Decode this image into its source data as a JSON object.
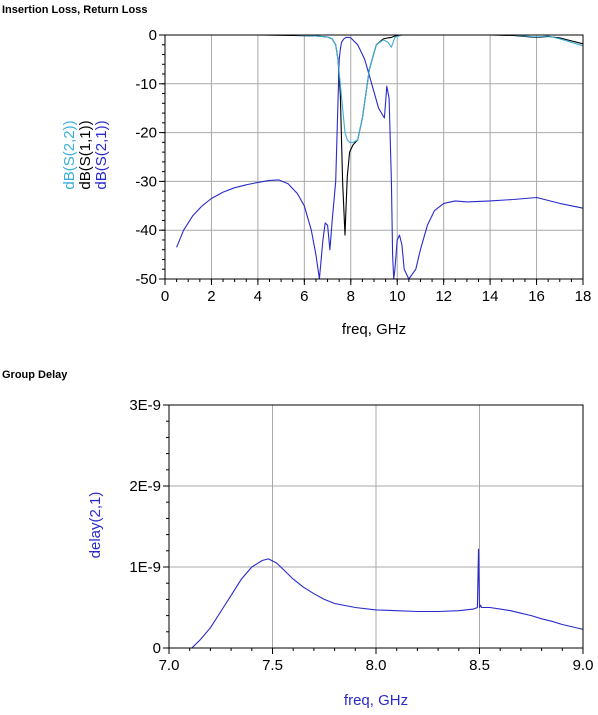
{
  "chart_data": [
    {
      "type": "line",
      "title": "Insertion Loss, Return Loss",
      "xlabel": "freq, GHz",
      "xlim": [
        0,
        18
      ],
      "ylim": [
        -50,
        0
      ],
      "x_ticks": [
        "0",
        "2",
        "4",
        "6",
        "8",
        "10",
        "12",
        "14",
        "16",
        "18"
      ],
      "y_ticks": [
        "0",
        "-10",
        "-20",
        "-30",
        "-40",
        "-50"
      ],
      "grid": true,
      "y_labels": [
        {
          "text": "dB(S(2,2))",
          "color": "#3aaed8"
        },
        {
          "text": "dB(S(1,1))",
          "color": "#000000"
        },
        {
          "text": "dB(S(2,1))",
          "color": "#2a2acc"
        }
      ],
      "series": [
        {
          "name": "dB(S(2,1))",
          "color": "#2a2acc",
          "x": [
            0.5,
            0.8,
            1.2,
            1.6,
            2.0,
            2.5,
            3.0,
            3.5,
            4.0,
            4.5,
            4.9,
            5.3,
            5.7,
            6.0,
            6.3,
            6.5,
            6.65,
            6.8,
            6.9,
            7.0,
            7.1,
            7.2,
            7.35,
            7.5,
            7.55,
            7.6,
            7.7,
            7.8,
            7.9,
            8.0,
            8.3,
            8.6,
            8.9,
            9.2,
            9.45,
            9.55,
            9.65,
            9.75,
            9.8,
            9.85,
            9.9,
            10.0,
            10.1,
            10.2,
            10.3,
            10.5,
            10.8,
            11.0,
            11.3,
            11.6,
            12.0,
            12.5,
            13.0,
            14.0,
            15.0,
            16.0,
            17.0,
            18.0
          ],
          "y": [
            -43.5,
            -40,
            -37,
            -35,
            -33.5,
            -32.2,
            -31.3,
            -30.7,
            -30.2,
            -29.8,
            -29.7,
            -30.5,
            -32.5,
            -35,
            -40,
            -45,
            -50,
            -42,
            -38.5,
            -39,
            -44,
            -38,
            -30,
            -5,
            -3,
            -1.5,
            -0.8,
            -0.5,
            -0.5,
            -0.6,
            -2,
            -5,
            -10,
            -15,
            -17,
            -10.5,
            -13,
            -30,
            -45,
            -50,
            -48,
            -42,
            -41,
            -43,
            -48,
            -50,
            -48,
            -44,
            -39,
            -36,
            -34.5,
            -34,
            -34.2,
            -34,
            -33.7,
            -33.3,
            -34.5,
            -35.5
          ]
        },
        {
          "name": "dB(S(1,1))",
          "color": "#000000",
          "x": [
            0.5,
            2,
            4,
            5.5,
            6.5,
            7.0,
            7.2,
            7.35,
            7.45,
            7.55,
            7.65,
            7.75,
            7.8,
            7.85,
            7.95,
            8.1,
            8.3,
            8.5,
            8.8,
            9.1,
            9.4,
            9.6,
            9.75,
            9.9,
            10.2,
            11,
            12,
            13,
            14,
            15,
            16,
            16.5,
            17,
            17.5,
            18
          ],
          "y": [
            0,
            0,
            0,
            -0.1,
            -0.2,
            -0.4,
            -0.8,
            -2,
            -5,
            -12,
            -30,
            -41,
            -35,
            -29,
            -24,
            -22.5,
            -21.5,
            -17,
            -7,
            -2,
            -0.8,
            -0.6,
            -0.5,
            -0.2,
            0,
            0,
            0,
            0,
            0,
            -0.1,
            -0.5,
            -0.3,
            -0.6,
            -1.2,
            -1.8
          ]
        },
        {
          "name": "dB(S(2,2))",
          "color": "#3aaed8",
          "x": [
            0.5,
            2,
            4,
            5.5,
            6.5,
            7.0,
            7.2,
            7.35,
            7.45,
            7.55,
            7.65,
            7.75,
            7.85,
            7.95,
            8.1,
            8.3,
            8.5,
            8.8,
            9.1,
            9.4,
            9.6,
            9.75,
            9.9,
            10.2,
            11,
            12,
            13,
            14,
            15,
            16,
            16.5,
            17,
            17.5,
            18
          ],
          "y": [
            0,
            0,
            0,
            0,
            -0.2,
            -0.4,
            -0.8,
            -2,
            -5,
            -10,
            -15,
            -20,
            -21.5,
            -22,
            -22,
            -21.5,
            -17,
            -7,
            -2,
            -1,
            -1.5,
            -2.5,
            -0.5,
            0,
            0,
            0,
            0,
            0,
            0,
            -0.4,
            -0.2,
            -0.8,
            -1.5,
            -2.2
          ]
        }
      ]
    },
    {
      "type": "line",
      "title": "Group Delay",
      "xlabel": "freq, GHz",
      "ylabel": "delay(2,1)",
      "xlim": [
        7.0,
        9.0
      ],
      "ylim": [
        0,
        3e-09
      ],
      "x_ticks": [
        "7.0",
        "7.5",
        "8.0",
        "8.5",
        "9.0"
      ],
      "y_ticks": [
        "3E-9",
        "2E-9",
        "1E-9",
        "0"
      ],
      "grid": true,
      "series": [
        {
          "name": "delay(2,1)",
          "color": "#2a2acc",
          "x": [
            7.11,
            7.15,
            7.2,
            7.25,
            7.3,
            7.35,
            7.4,
            7.45,
            7.48,
            7.52,
            7.56,
            7.6,
            7.65,
            7.7,
            7.75,
            7.8,
            7.9,
            8.0,
            8.1,
            8.2,
            8.3,
            8.4,
            8.47,
            8.49,
            8.495,
            8.5,
            8.505,
            8.51,
            8.55,
            8.6,
            8.65,
            8.7,
            8.75,
            8.8,
            8.85,
            8.9,
            8.95,
            9.0
          ],
          "y": [
            0,
            1e-10,
            2.5e-10,
            4.5e-10,
            6.5e-10,
            8.5e-10,
            1e-09,
            1.08e-09,
            1.1e-09,
            1.05e-09,
            9.5e-10,
            8.5e-10,
            7.5e-10,
            6.7e-10,
            6e-10,
            5.5e-10,
            5e-10,
            4.7e-10,
            4.6e-10,
            4.5e-10,
            4.5e-10,
            4.6e-10,
            4.8e-10,
            5e-10,
            1.22e-09,
            5e-10,
            5.3e-10,
            5e-10,
            5e-10,
            4.8e-10,
            4.6e-10,
            4.3e-10,
            4e-10,
            3.6e-10,
            3.3e-10,
            2.9e-10,
            2.6e-10,
            2.3e-10
          ]
        }
      ]
    }
  ]
}
